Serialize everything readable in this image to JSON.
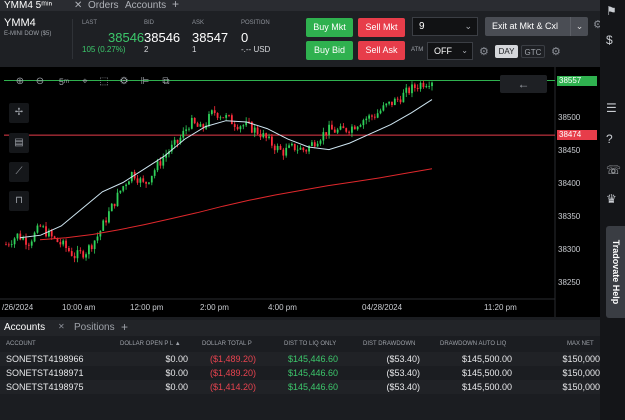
{
  "tabs": {
    "chart_tab": "YMM4 5ᵐᶦⁿ",
    "orders_tab": "Orders",
    "accounts_tab": "Accounts",
    "add": "+"
  },
  "quote": {
    "symbol": "YMM4",
    "description": "E-MINI DOW ($5)",
    "last_label": "LAST",
    "last_value": "38546",
    "change": "105 (0.27%)",
    "bid_label": "BID",
    "bid_value": "38546",
    "bid_size": "2",
    "ask_label": "ASK",
    "ask_value": "38547",
    "ask_size": "1",
    "position_label": "POSITION",
    "position_value": "0",
    "position_sub": "-.-- USD"
  },
  "trade": {
    "buy_mkt": "Buy Mkt",
    "sell_mkt": "Sell Mkt",
    "buy_bid": "Buy Bid",
    "sell_ask": "Sell Ask",
    "quantity": "9",
    "exit_label": "Exit at Mkt & Cxl",
    "atm_label": "ATM",
    "atm_value": "OFF",
    "tif_day": "DAY",
    "tif_gtc": "GTC"
  },
  "chart_toolbar": {
    "interval": "5ᵐ"
  },
  "chart_data": {
    "type": "candlestick",
    "symbol": "YMM4",
    "ylim": [
      38225,
      38570
    ],
    "y_ticks": [
      "38500",
      "38450",
      "38400",
      "38350",
      "38300",
      "38250"
    ],
    "x_ticks": [
      "/26/2024",
      "10:00 am",
      "12:00 pm",
      "2:00 pm",
      "4:00 pm",
      "04/28/2024",
      "11:20 pm"
    ],
    "price_lines": [
      {
        "label": "38557",
        "value": 38557,
        "color": "#2fb14f"
      },
      {
        "label": "38474",
        "value": 38474,
        "color": "#e73d4a"
      }
    ],
    "series": [
      {
        "kind": "ma_fast",
        "color": "#cfe6f2",
        "values": [
          38318,
          38322,
          38336,
          38362,
          38388,
          38402,
          38422,
          38442,
          38468,
          38487,
          38496,
          38494,
          38484,
          38468,
          38456,
          38452,
          38462,
          38476,
          38490,
          38508,
          38528
        ]
      },
      {
        "kind": "ma_slow",
        "color": "#e0282c",
        "values": [
          38315,
          38318,
          38323,
          38330,
          38338,
          38347,
          38356,
          38366,
          38375,
          38383,
          38390,
          38397,
          38403,
          38409,
          38416,
          38423
        ]
      },
      {
        "kind": "price",
        "values": [
          38308,
          38322,
          38312,
          38335,
          38318,
          38306,
          38290,
          38298,
          38322,
          38358,
          38392,
          38418,
          38398,
          38424,
          38448,
          38465,
          38494,
          38482,
          38510,
          38502,
          38491,
          38488,
          38478,
          38462,
          38448,
          38456,
          38451,
          38468,
          38482,
          38480,
          38486,
          38498,
          38504,
          38518,
          38528,
          38542,
          38552,
          38558
        ]
      }
    ]
  },
  "accounts": {
    "tab_accounts": "Accounts",
    "tab_positions": "Positions",
    "add": "+",
    "headers": [
      "ACCOUNT",
      "DOLLAR OPEN P L ▲",
      "DOLLAR TOTAL P",
      "DIST TO LIQ ONLY",
      "DIST DRAWDOWN",
      "DRAWDOWN AUTO LIQ",
      "MAX NET"
    ],
    "rows": [
      [
        "SONETST4198966",
        "$0.00",
        "($1,489.20)",
        "$145,446.60",
        "($53.40)",
        "$145,500.00",
        "$150,000"
      ],
      [
        "SONETST4198971",
        "$0.00",
        "($1,489.20)",
        "$145,446.60",
        "($53.40)",
        "$145,500.00",
        "$150,000"
      ],
      [
        "SONETST4198975",
        "$0.00",
        "($1,414.20)",
        "$145,446.60",
        "($53.40)",
        "$145,500.00",
        "$150,000"
      ]
    ]
  },
  "sidebar": {
    "help_label": "Tradovate Help"
  }
}
